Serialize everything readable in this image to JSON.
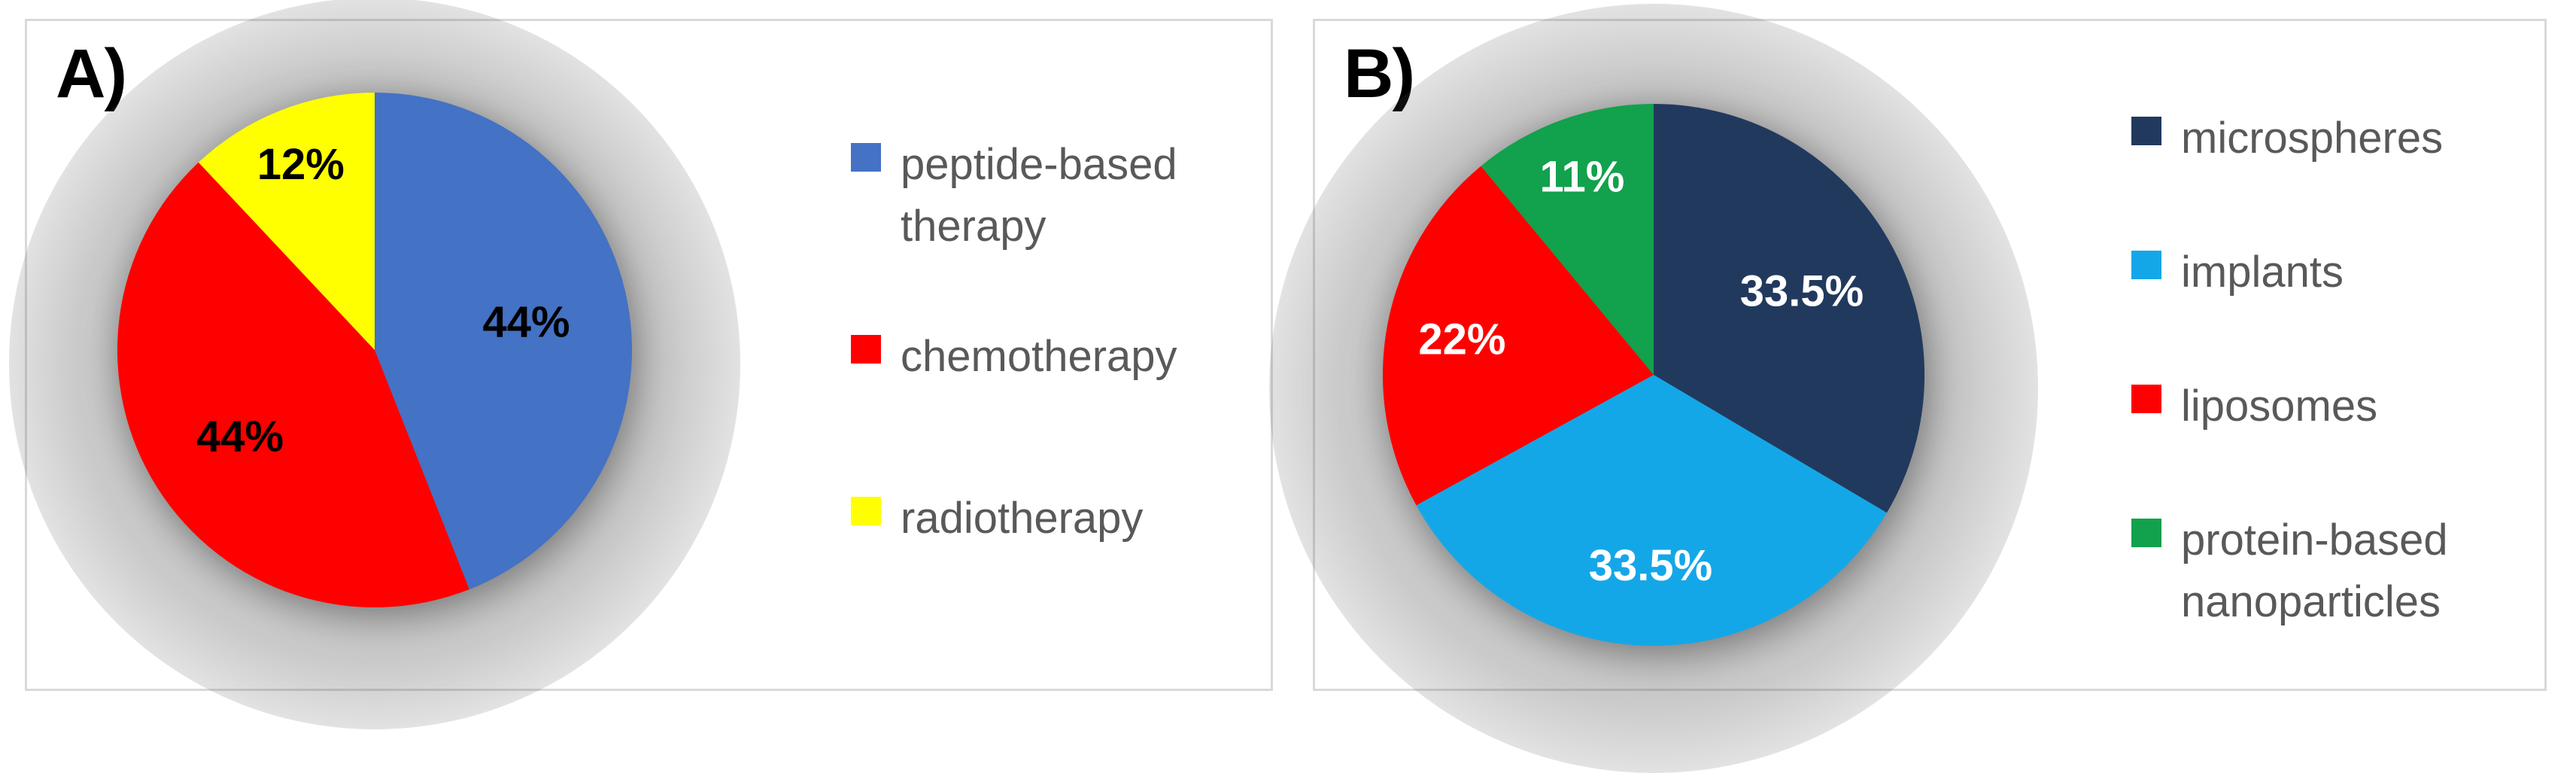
{
  "page": {
    "background": "#FFFFFF",
    "panel_border_color": "#D9D9D9",
    "legend_text_color": "#595959"
  },
  "panels": [
    {
      "label": "A)"
    },
    {
      "label": "B)"
    }
  ],
  "chart_data": [
    {
      "type": "pie",
      "title": "A)",
      "categories": [
        "peptide-based therapy",
        "chemotherapy",
        "radiotherapy"
      ],
      "values": [
        44,
        44,
        12
      ],
      "slice_labels": [
        "44%",
        "44%",
        "12%"
      ],
      "colors": [
        "#4472C4",
        "#FF0000",
        "#FFFF00"
      ],
      "slice_label_color": "#000000",
      "start_angle_deg": 0,
      "direction": "clockwise",
      "legend_position": "right"
    },
    {
      "type": "pie",
      "title": "B)",
      "categories": [
        "microspheres",
        "implants",
        "liposomes",
        "protein-based nanoparticles"
      ],
      "values": [
        33.5,
        33.5,
        22,
        11
      ],
      "slice_labels": [
        "33.5%",
        "33.5%",
        "22%",
        "11%"
      ],
      "colors": [
        "#22395E",
        "#14A7E8",
        "#FF0000",
        "#12A14C"
      ],
      "slice_label_color": "#FFFFFF",
      "start_angle_deg": 0,
      "direction": "clockwise",
      "legend_position": "right"
    }
  ]
}
